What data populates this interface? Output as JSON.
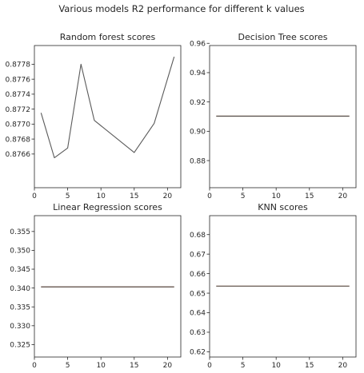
{
  "suptitle": "Various models R2 performance for different k values",
  "colors": {
    "line": "#5a5a5a",
    "overlay": "#c8a08c",
    "axis": "#262626"
  },
  "chart_data": [
    {
      "type": "line",
      "title": "Random forest scores",
      "xlabel": "",
      "ylabel": "",
      "xlim": [
        0,
        22
      ],
      "ylim": [
        0.87615,
        0.87805
      ],
      "xticks": [
        0,
        5,
        10,
        15,
        20
      ],
      "yticks": [
        0.8766,
        0.8768,
        0.877,
        0.8772,
        0.8774,
        0.8776,
        0.8778
      ],
      "ytick_labels": [
        "0.8766",
        "0.8768",
        "0.8770",
        "0.8772",
        "0.8774",
        "0.8776",
        "0.8778"
      ],
      "series": [
        {
          "x": [
            1,
            3,
            5,
            7,
            9,
            15,
            18,
            21
          ],
          "y": [
            0.87715,
            0.87655,
            0.87668,
            0.8778,
            0.87705,
            0.87662,
            0.87701,
            0.8779
          ]
        }
      ]
    },
    {
      "type": "line",
      "title": "Decision Tree scores",
      "xlabel": "",
      "ylabel": "",
      "xlim": [
        0,
        22
      ],
      "ylim": [
        0.8615,
        0.9585
      ],
      "xticks": [
        0,
        5,
        10,
        15,
        20
      ],
      "yticks": [
        0.88,
        0.9,
        0.92,
        0.94,
        0.96
      ],
      "ytick_labels": [
        "0.88",
        "0.90",
        "0.92",
        "0.94",
        "0.96"
      ],
      "series": [
        {
          "x": [
            1,
            21
          ],
          "y": [
            0.9103,
            0.9103
          ]
        }
      ]
    },
    {
      "type": "line",
      "title": "Linear Regression scores",
      "xlabel": "",
      "ylabel": "",
      "xlim": [
        0,
        22
      ],
      "ylim": [
        0.3217,
        0.3592
      ],
      "xticks": [
        0,
        5,
        10,
        15,
        20
      ],
      "yticks": [
        0.325,
        0.33,
        0.335,
        0.34,
        0.345,
        0.35,
        0.355
      ],
      "ytick_labels": [
        "0.325",
        "0.330",
        "0.335",
        "0.340",
        "0.345",
        "0.350",
        "0.355"
      ],
      "series": [
        {
          "x": [
            1,
            21
          ],
          "y": [
            0.3403,
            0.3403
          ]
        }
      ]
    },
    {
      "type": "line",
      "title": "KNN scores",
      "xlabel": "",
      "ylabel": "",
      "xlim": [
        0,
        22
      ],
      "ylim": [
        0.6173,
        0.6897
      ],
      "xticks": [
        0,
        5,
        10,
        15,
        20
      ],
      "yticks": [
        0.62,
        0.63,
        0.64,
        0.65,
        0.66,
        0.67,
        0.68
      ],
      "ytick_labels": [
        "0.62",
        "0.63",
        "0.64",
        "0.65",
        "0.66",
        "0.67",
        "0.68"
      ],
      "series": [
        {
          "x": [
            1,
            21
          ],
          "y": [
            0.6536,
            0.6536
          ]
        }
      ]
    }
  ]
}
